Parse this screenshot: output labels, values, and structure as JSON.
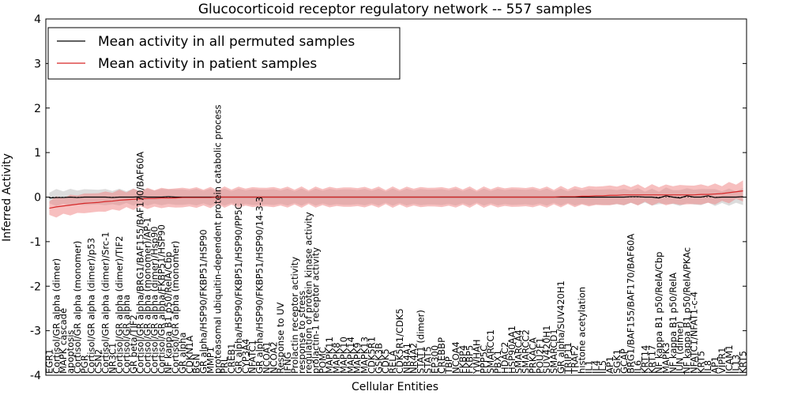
{
  "chart_data": {
    "type": "line",
    "title": "Glucocorticoid receptor regulatory network -- 557 samples",
    "xlabel": "Cellular Entities",
    "ylabel": "Inferred Activity",
    "ylim": [
      -4,
      4
    ],
    "yticks": [
      -4,
      -3,
      -2,
      -1,
      0,
      1,
      2,
      3,
      4
    ],
    "grid": false,
    "legend_position": "top-left",
    "colors": {
      "permuted": "#000000",
      "patient": "#d62728",
      "permuted_band": "#bfbfbf",
      "patient_band": "#f08080"
    },
    "categories": [
      "EGR1",
      "Cortisol/GR alpha (dimer)",
      "MAPK cascade",
      "apoptosis",
      "Cortisol/GR alpha (monomer)",
      "PGR",
      "Cortisol/GR alpha (dimer)/p53",
      "CSN2",
      "Cortisol/GR alpha (dimer)/Src-1",
      "NR3C1",
      "Cortisol/GR alpha (dimer)/TIF2",
      "Cortisol/GR alpha",
      "GR beta/TIF2",
      "Cortisol/GR alpha/BRG1/BAF155/BAF170/BAF60A",
      "Cortisol/GR alpha (monomer)/AP-1",
      "Cortisol/GR alpha (dimer)/Hsp90",
      "Cortisol/GR alpha/FKBP51/HSP90",
      "NF kappa B1 p50/RelA/Cbp",
      "Cortisol/GR alpha (monomer)",
      "GR alpha",
      "CDKN1A",
      "BGN",
      "GR alpha/HSP90/FKBP51/HSP90",
      "MMP1",
      "proteasomal ubiquitin-dependent protein catabolic process",
      "PRL",
      "CREB1",
      "GR alpha/HSP90/FKBP51/HSP90/PP5C",
      "CYP3A4",
      "NFATC1",
      "GR alpha/HSP90/FKBP51/HSP90/14-3-3",
      "NCOA1",
      "NCOA2",
      "Response to UV",
      "IFNG",
      "Prolactin receptor activity",
      "response to stress",
      "regulation of protein kinase activity",
      "prolactin-1 receptor activity",
      "POMC",
      "MAPK11",
      "MAPK8",
      "MAPK10",
      "MAPK14",
      "MAPK9",
      "MAPK13",
      "CDK5R1",
      "GSK3B",
      "CDK5",
      "RELA",
      "CDK5R1/CDK5",
      "NR4A1",
      "NR4A2",
      "STAT1 (dimer)",
      "STAT5",
      "EP300",
      "CREBBP",
      "TBP",
      "NCOA4",
      "FKBP4",
      "FKBP5",
      "YWHAH",
      "PPP5C",
      "SMARCC1",
      "PBX1",
      "HDAC2",
      "HSP90AA1",
      "SMARCA4",
      "SMARCC2",
      "PRKACA",
      "POU2F1",
      "SUV420H1",
      "SMARCD1",
      "GR alpha/SUV420H1",
      "TRIP11",
      "TRAF2",
      "histone acetylation",
      "IL1",
      "IL4",
      "IL5",
      "AP1",
      "SGK1",
      "GCAP",
      "BRG1/BAF155/BAF170/BAF60A",
      "IL6",
      "KRT14",
      "KRT17",
      "NF kappa B1 p50/RelA/Cbp",
      "MAPK3",
      "NF kappa B1 p50/RelA",
      "JUN (dimer)",
      "NF kappa B1 p50/RelA/PKAc",
      "NFATC1/NFAT1-c-4",
      "KRT5",
      "IL8",
      "AP1",
      "VIPR1",
      "ICAM1",
      "IL13",
      "KRT5"
    ],
    "series": [
      {
        "name": "Mean activity in all permuted samples",
        "values": [
          -0.02,
          -0.01,
          -0.01,
          0,
          -0.01,
          0,
          0,
          0,
          0,
          -0.01,
          0,
          0,
          0,
          0.01,
          0,
          0,
          0,
          0.01,
          0,
          0,
          0,
          0,
          0,
          0,
          0,
          0,
          0,
          0,
          0,
          0,
          0,
          0,
          0,
          0,
          0,
          0,
          0,
          0,
          0,
          0,
          0,
          0,
          0,
          0,
          0,
          0,
          0,
          0,
          0,
          0,
          0,
          0,
          0,
          0,
          0,
          0,
          0,
          0,
          0,
          0,
          0,
          0,
          0,
          0,
          0,
          0,
          0,
          0,
          0,
          0,
          0,
          0,
          0,
          0,
          0,
          0,
          0,
          0,
          0,
          0,
          0,
          0,
          0,
          0.01,
          0.01,
          0,
          0,
          -0.02,
          0.03,
          0,
          -0.02,
          0.03,
          0,
          0,
          0.03,
          -0.01,
          0,
          0,
          0,
          0.01
        ],
        "band": 0.12
      },
      {
        "name": "Mean activity in patient samples",
        "values": [
          -0.25,
          -0.22,
          -0.2,
          -0.18,
          -0.16,
          -0.14,
          -0.13,
          -0.12,
          -0.1,
          -0.09,
          -0.07,
          -0.06,
          -0.05,
          -0.04,
          -0.03,
          -0.03,
          -0.02,
          -0.02,
          -0.02,
          -0.01,
          -0.01,
          -0.01,
          -0.01,
          -0.01,
          0,
          0,
          0,
          0,
          0,
          0,
          0,
          0,
          0,
          0,
          0,
          0,
          0,
          0,
          0,
          0,
          0,
          0,
          0,
          0,
          0,
          0,
          0,
          0,
          0,
          0,
          0,
          0,
          0,
          0,
          0,
          0,
          0,
          0,
          0,
          0,
          0,
          0,
          0,
          0,
          0,
          0,
          0,
          0,
          0,
          0,
          0,
          0,
          0,
          0.01,
          0.01,
          0.01,
          0.02,
          0.02,
          0.03,
          0.03,
          0.04,
          0.04,
          0.05,
          0.05,
          0.05,
          0.05,
          0.05,
          0.05,
          0.05,
          0.05,
          0.05,
          0.05,
          0.05,
          0.06,
          0.06,
          0.07,
          0.08,
          0.1,
          0.12,
          0.14
        ],
        "band": 0.15
      }
    ]
  }
}
